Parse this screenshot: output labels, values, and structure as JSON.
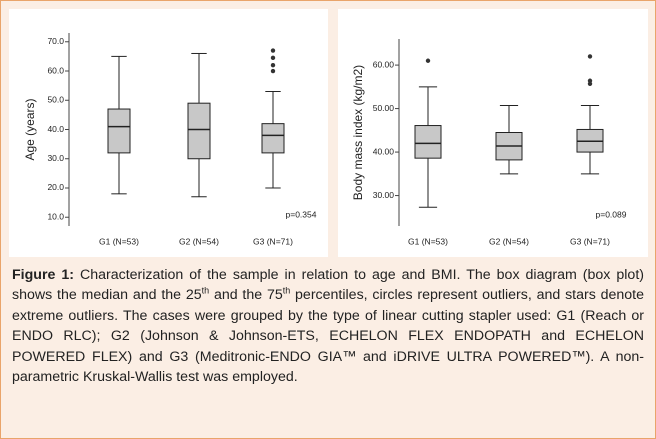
{
  "chart_data": [
    {
      "type": "box",
      "y_label": "Age (years)",
      "categories": [
        "G1 (N=53)",
        "G2 (N=54)",
        "G3 (N=71)"
      ],
      "boxes": [
        {
          "min": 18,
          "q1": 32,
          "median": 41,
          "q3": 47,
          "max": 65,
          "outliers": []
        },
        {
          "min": 17,
          "q1": 30,
          "median": 40,
          "q3": 49,
          "max": 66,
          "outliers": []
        },
        {
          "min": 20,
          "q1": 32,
          "median": 38,
          "q3": 42,
          "max": 53,
          "outliers": [
            60,
            62,
            64.5,
            67
          ]
        }
      ],
      "color": "#c8c8c8",
      "ylim": [
        7,
        73
      ],
      "yticks": [
        {
          "value": 10,
          "label": "10.0"
        },
        {
          "value": 20,
          "label": "20.0"
        },
        {
          "value": 30,
          "label": "30.0"
        },
        {
          "value": 40,
          "label": "40.0"
        },
        {
          "value": 50,
          "label": "50.0"
        },
        {
          "value": 60,
          "label": "60.0"
        },
        {
          "value": 70,
          "label": "70.0"
        }
      ],
      "annotation": "p=0.354"
    },
    {
      "type": "box",
      "y_label": "Body mass index (kg/m2)",
      "categories": [
        "G1 (N=53)",
        "G2 (N=54)",
        "G3 (N=71)"
      ],
      "boxes": [
        {
          "min": 27.3,
          "q1": 38.6,
          "median": 42,
          "q3": 46.1,
          "max": 55,
          "outliers": [
            61
          ]
        },
        {
          "min": 35,
          "q1": 38.2,
          "median": 41.4,
          "q3": 44.5,
          "max": 50.7,
          "outliers": []
        },
        {
          "min": 35,
          "q1": 40,
          "median": 42.5,
          "q3": 45.2,
          "max": 50.7,
          "outliers": [
            55.7,
            56.4,
            62
          ]
        }
      ],
      "color": "#c8c8c8",
      "ylim": [
        23,
        66
      ],
      "yticks": [
        {
          "value": 30,
          "label": "30.00"
        },
        {
          "value": 40,
          "label": "40.00"
        },
        {
          "value": 50,
          "label": "50.00"
        },
        {
          "value": 60,
          "label": "60.00"
        }
      ],
      "annotation": "p=0.089"
    }
  ],
  "caption": {
    "label": "Figure 1:",
    "segments": [
      " Characterization of the sample in relation to age and BMI. The box diagram (box plot) shows the median and the 25",
      "th",
      " and the 75",
      "th",
      " percentiles, circles represent outliers, and stars denote extreme outliers. The cases were grouped by the type of linear cutting stapler used: G1 (Reach or ENDO RLC); G2 (Johnson & Johnson-ETS, ECHELON FLEX ENDOPATH and ECHELON POWERED FLEX) and G3 (Meditronic-ENDO GIA™ and iDRIVE ULTRA POWERED™). A non-parametric Kruskal-Wallis test was employed."
    ]
  }
}
